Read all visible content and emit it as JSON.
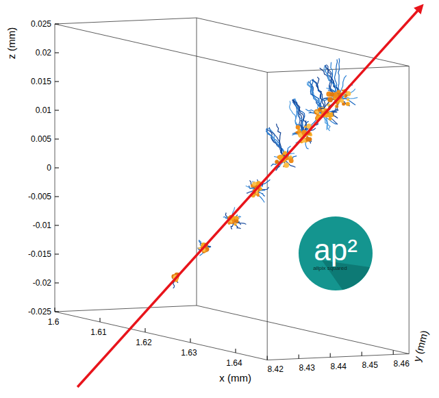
{
  "chart_data": {
    "type": "scatter3d",
    "xlabel": "x (mm)",
    "ylabel": "y (mm)",
    "zlabel": "z (mm)",
    "xlim": [
      1.6,
      1.647
    ],
    "xticks": [
      1.6,
      1.61,
      1.62,
      1.63,
      1.64
    ],
    "ylim": [
      8.42,
      8.465
    ],
    "yticks": [
      8.42,
      8.43,
      8.44,
      8.45,
      8.46
    ],
    "zlim": [
      -0.025,
      0.025
    ],
    "zticks": [
      -0.025,
      -0.02,
      -0.015,
      -0.01,
      -0.005,
      0,
      0.005,
      0.01,
      0.015,
      0.02,
      0.025
    ],
    "x": [
      1.617,
      1.621,
      1.626,
      1.63,
      1.634,
      1.637,
      1.64,
      1.642
    ],
    "y": [
      8.434,
      8.437,
      8.439,
      8.441,
      8.444,
      8.446,
      8.448,
      8.45
    ],
    "z": [
      -0.0165,
      -0.0105,
      -0.005,
      0.001,
      0.007,
      0.012,
      0.016,
      0.019
    ],
    "logo": {
      "text": "ap²",
      "subtitle": "allpix squared"
    }
  }
}
